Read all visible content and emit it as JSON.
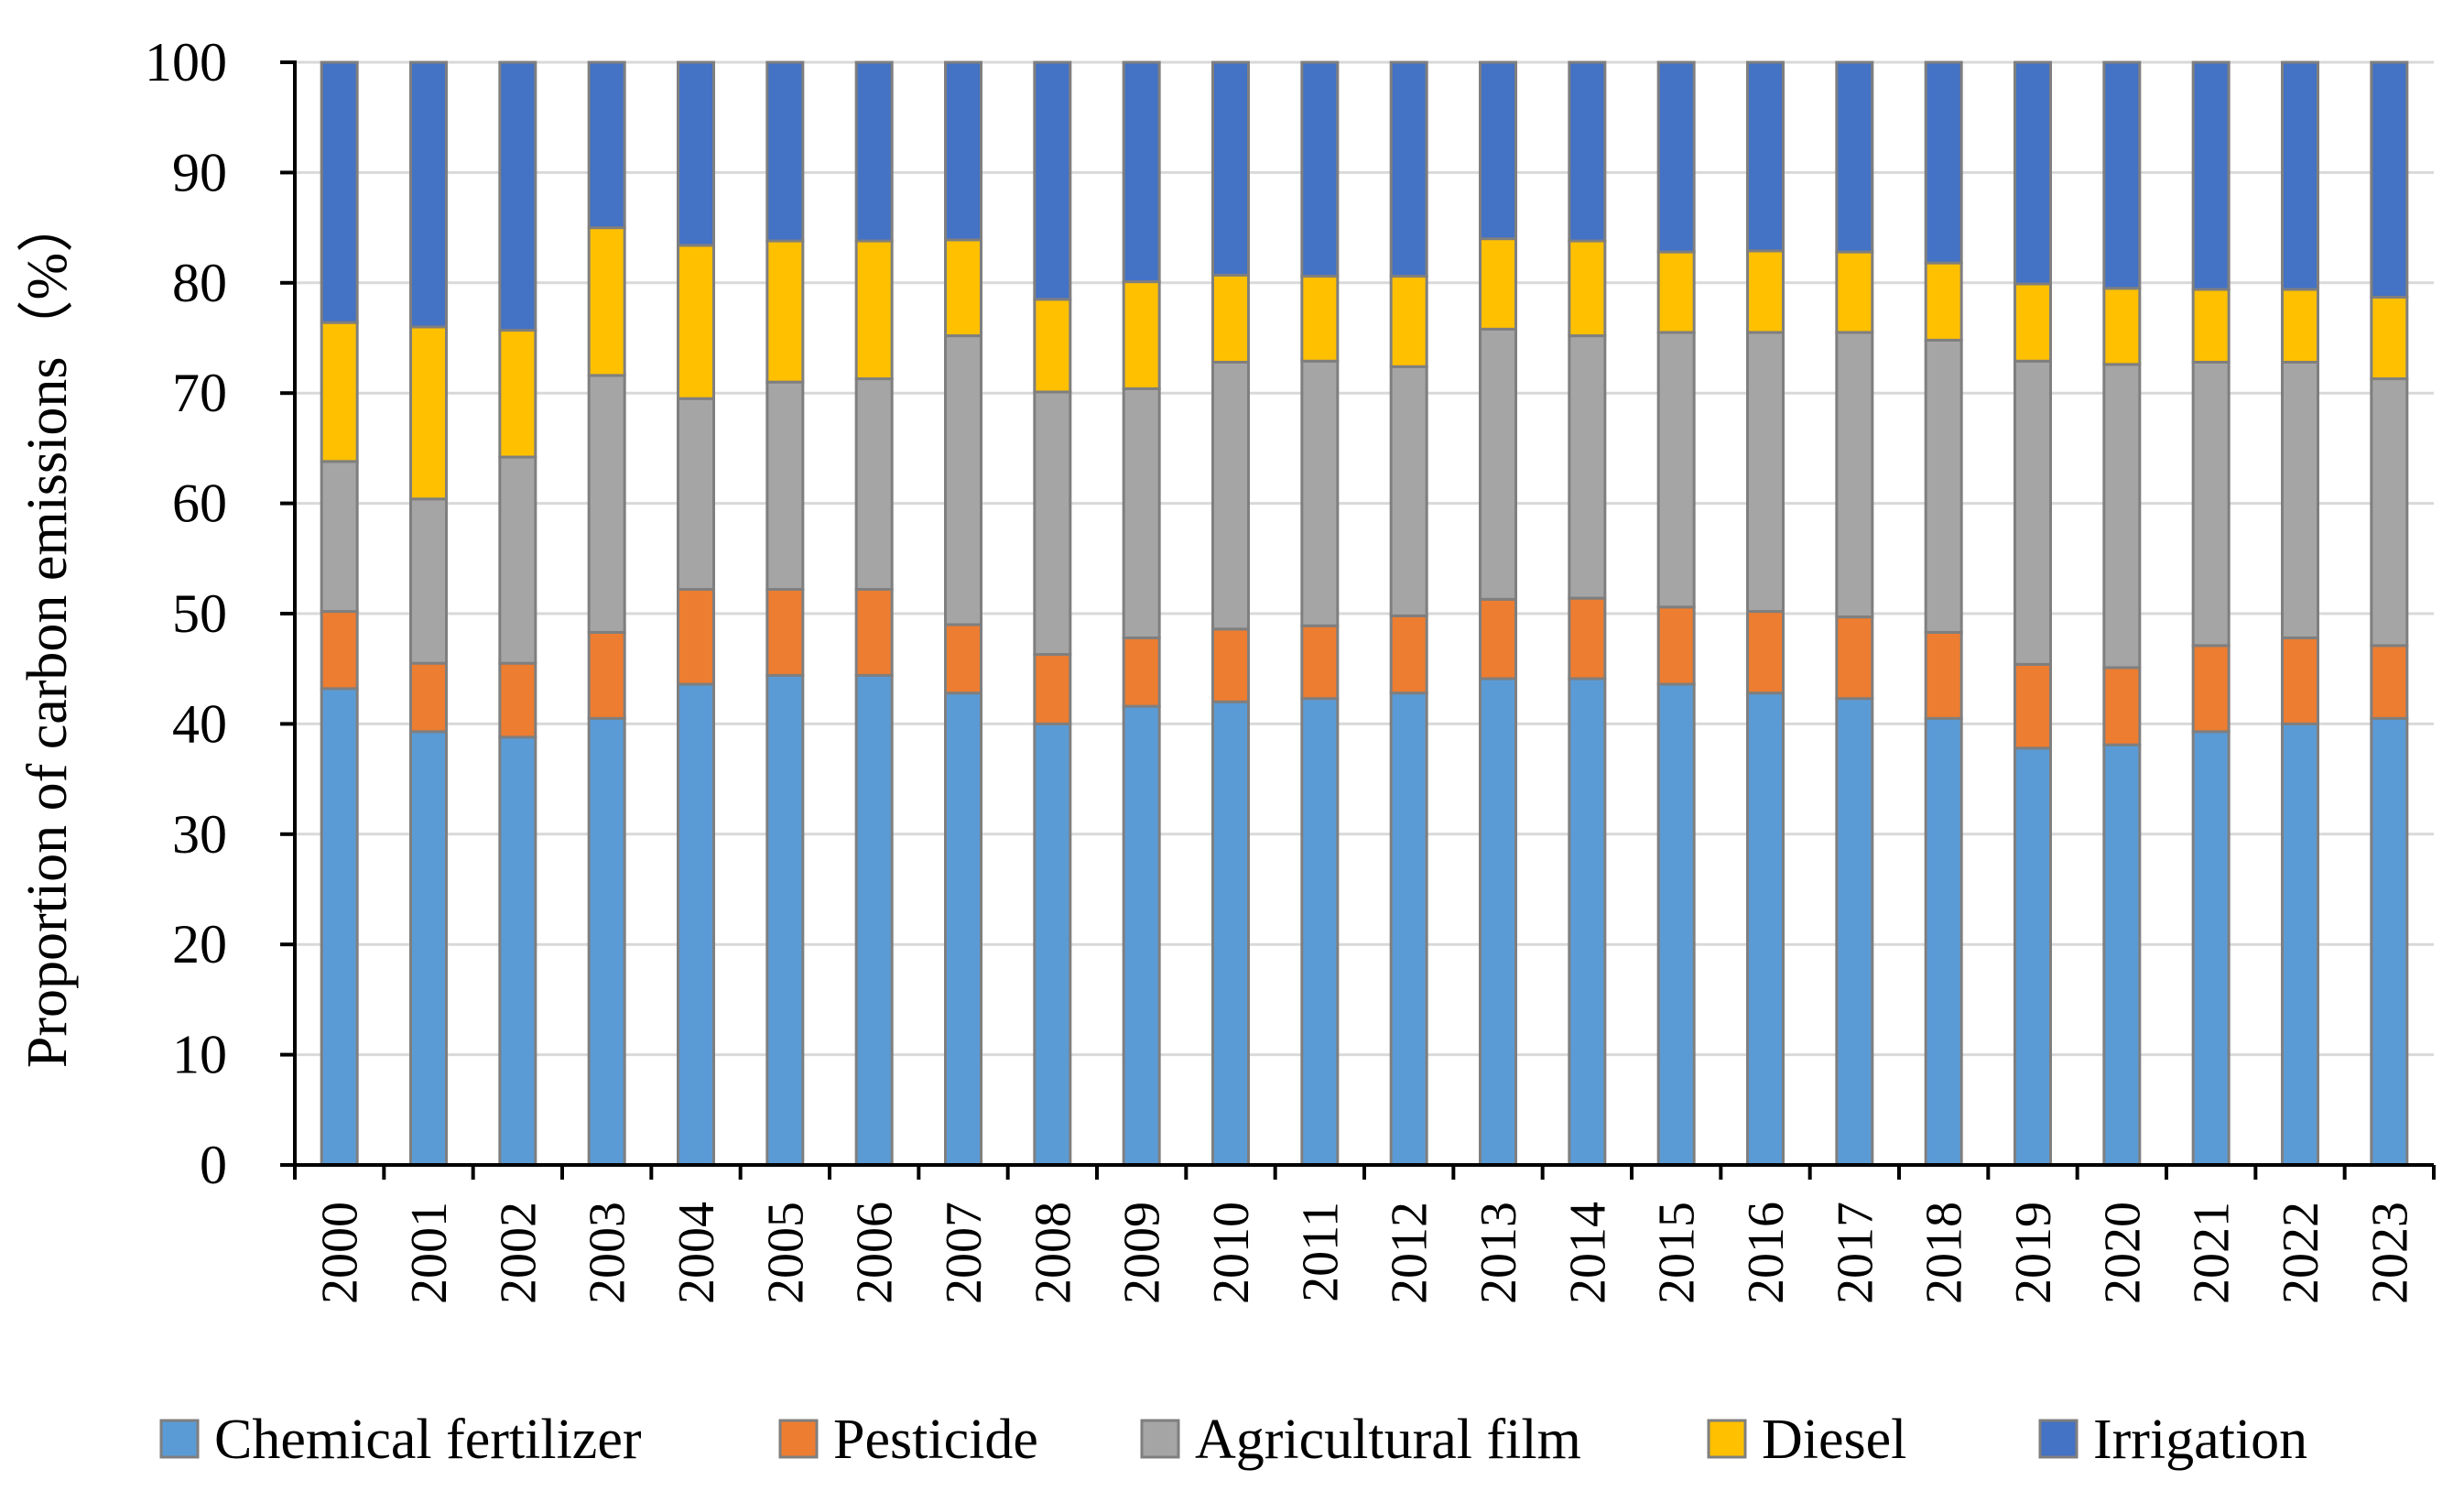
{
  "chart_data": {
    "type": "bar",
    "stacked": true,
    "title": "",
    "xlabel": "",
    "ylabel": "Proportion of carbon emissions（%）",
    "ylim": [
      0,
      100
    ],
    "yticks": [
      0,
      10,
      20,
      30,
      40,
      50,
      60,
      70,
      80,
      90,
      100
    ],
    "grid": true,
    "legend_position": "bottom",
    "categories": [
      "2000",
      "2001",
      "2002",
      "2003",
      "2004",
      "2005",
      "2006",
      "2007",
      "2008",
      "2009",
      "2010",
      "2011",
      "2012",
      "2013",
      "2014",
      "2015",
      "2016",
      "2017",
      "2018",
      "2019",
      "2020",
      "2021",
      "2022",
      "2023"
    ],
    "series": [
      {
        "name": "Chemical fertilizer",
        "color": "#5B9BD5",
        "values": [
          43.2,
          39.3,
          38.8,
          40.5,
          43.6,
          44.4,
          44.4,
          42.8,
          40.0,
          41.6,
          42.0,
          42.3,
          42.8,
          44.1,
          44.1,
          43.6,
          42.8,
          42.3,
          40.5,
          37.8,
          38.1,
          39.3,
          40.0,
          40.5
        ]
      },
      {
        "name": "Pesticide",
        "color": "#ED7D31",
        "values": [
          7.0,
          6.2,
          6.7,
          7.8,
          8.6,
          7.8,
          7.8,
          6.2,
          6.3,
          6.2,
          6.6,
          6.6,
          7.0,
          7.2,
          7.3,
          7.0,
          7.4,
          7.4,
          7.8,
          7.6,
          7.0,
          7.8,
          7.8,
          6.6
        ]
      },
      {
        "name": "Agricultural film",
        "color": "#A5A5A5",
        "values": [
          13.6,
          14.9,
          18.7,
          23.3,
          17.3,
          18.8,
          19.1,
          26.2,
          23.8,
          22.6,
          24.2,
          24.0,
          22.6,
          24.5,
          23.8,
          24.9,
          25.3,
          25.8,
          26.5,
          27.5,
          27.5,
          25.7,
          25.0,
          24.2
        ]
      },
      {
        "name": "Diesel",
        "color": "#FFC000",
        "values": [
          12.6,
          15.6,
          11.5,
          13.4,
          13.9,
          12.8,
          12.5,
          8.7,
          8.4,
          9.7,
          7.9,
          7.7,
          8.2,
          8.2,
          8.6,
          7.3,
          7.4,
          7.3,
          7.0,
          7.0,
          6.9,
          6.6,
          6.6,
          7.4
        ]
      },
      {
        "name": "Irrigation",
        "color": "#4472C4",
        "values": [
          23.6,
          24.0,
          24.3,
          15.0,
          16.6,
          16.2,
          16.2,
          16.1,
          21.5,
          19.9,
          19.3,
          19.4,
          19.4,
          16.0,
          16.2,
          17.2,
          17.1,
          17.2,
          18.2,
          20.1,
          20.5,
          20.6,
          20.6,
          21.3
        ]
      }
    ]
  }
}
